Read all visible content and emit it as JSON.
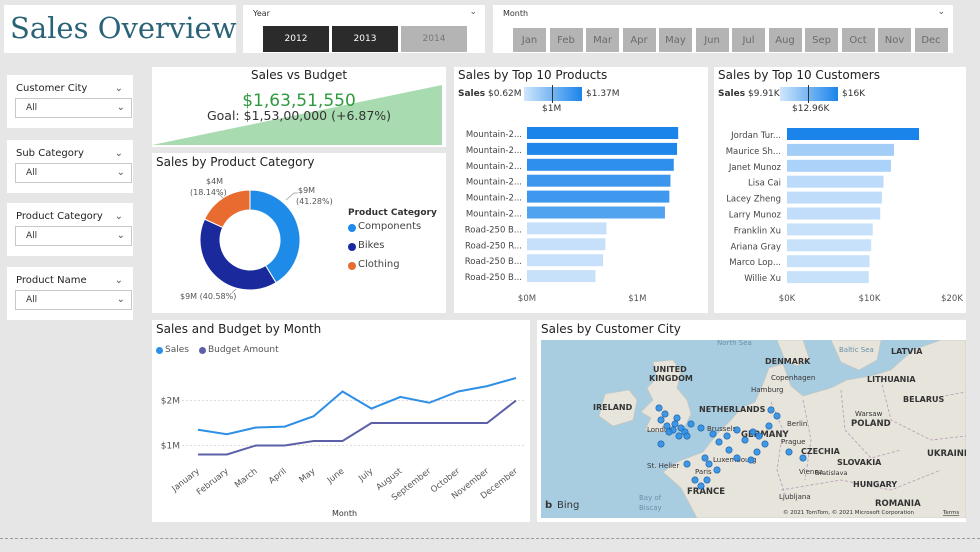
{
  "header": {
    "title": "Sales Overview"
  },
  "year_slicer": {
    "label": "Year",
    "options": [
      "2012",
      "2013",
      "2014"
    ],
    "selected": [
      "2012",
      "2013"
    ]
  },
  "month_slicer": {
    "label": "Month",
    "options": [
      "Jan",
      "Feb",
      "Mar",
      "Apr",
      "May",
      "Jun",
      "Jul",
      "Aug",
      "Sep",
      "Oct",
      "Nov",
      "Dec"
    ]
  },
  "filters": [
    {
      "label": "Customer City",
      "value": "All"
    },
    {
      "label": "Sub Category",
      "value": "All"
    },
    {
      "label": "Product Category",
      "value": "All"
    },
    {
      "label": "Product Name",
      "value": "All"
    }
  ],
  "kpi": {
    "title": "Sales vs Budget",
    "value": "$1,63,51,550",
    "goal": "Goal: $1,53,00,000 (+6.87%)"
  },
  "colors": {
    "kpi_value": "#2e9a3e",
    "kpi_fill": "#a8dcb0",
    "bar_dark": "#1a84ea",
    "bar_light": "#bcdcfa",
    "sales_line": "#2e8fe6",
    "budget_line": "#5d5fa8",
    "components": "#1f8be8",
    "bikes": "#1a2a9c",
    "clothing": "#e86c30"
  },
  "category_chart": {
    "title": "Sales by Product Category",
    "legend_title": "Product Category",
    "items": [
      {
        "name": "Components",
        "share": 41.28,
        "label1": "$9M",
        "label2": "(41.28%)"
      },
      {
        "name": "Bikes",
        "share": 40.58,
        "label1": "$9M (40.58%)",
        "label2": ""
      },
      {
        "name": "Clothing",
        "share": 18.14,
        "label1": "$4M",
        "label2": "(18.14%)"
      }
    ]
  },
  "top_products": {
    "title": "Sales by Top 10 Products",
    "legend": {
      "label": "Sales",
      "min": "$0.62M",
      "max": "$1.37M",
      "mid": "$1M"
    },
    "axis_ticks": [
      "$0M",
      "$1M"
    ],
    "categories": [
      "Mountain-2...",
      "Mountain-2...",
      "Mountain-2...",
      "Mountain-2...",
      "Mountain-2...",
      "Mountain-2...",
      "Road-250 B...",
      "Road-250 R...",
      "Road-250 B...",
      "Road-250 B..."
    ],
    "values": [
      1.37,
      1.36,
      1.33,
      1.3,
      1.29,
      1.25,
      0.72,
      0.71,
      0.69,
      0.62
    ],
    "xlim": [
      0,
      1.45
    ]
  },
  "top_customers": {
    "title": "Sales by Top 10 Customers",
    "legend": {
      "label": "Sales",
      "min": "$9.91K",
      "max": "$16K",
      "mid": "$12.96K"
    },
    "axis_ticks": [
      "$0K",
      "$10K",
      "$20K"
    ],
    "categories": [
      "Jordan Tur...",
      "Maurice Sh...",
      "Janet Munoz",
      "Lisa Cai",
      "Lacey Zheng",
      "Larry Munoz",
      "Franklin Xu",
      "Ariana Gray",
      "Marco Lop...",
      "Willie Xu"
    ],
    "values": [
      16.0,
      12.96,
      12.6,
      11.7,
      11.5,
      11.3,
      10.4,
      10.2,
      10.0,
      9.91
    ],
    "xlim": [
      0,
      20
    ]
  },
  "chart_data": {
    "type": "line",
    "title": "Sales and Budget by Month",
    "xlabel": "Month",
    "ylabel": "",
    "categories": [
      "January",
      "February",
      "March",
      "April",
      "May",
      "June",
      "July",
      "August",
      "September",
      "October",
      "November",
      "December"
    ],
    "series": [
      {
        "name": "Sales",
        "values": [
          1.35,
          1.25,
          1.4,
          1.42,
          1.65,
          2.2,
          1.82,
          2.08,
          1.95,
          2.2,
          2.32,
          2.5
        ]
      },
      {
        "name": "Budget Amount",
        "values": [
          0.8,
          0.8,
          1.0,
          1.0,
          1.1,
          1.1,
          1.5,
          1.5,
          1.5,
          1.5,
          1.5,
          2.0
        ]
      }
    ],
    "y_ticks": [
      {
        "v": 1,
        "label": "$1M"
      },
      {
        "v": 2,
        "label": "$2M"
      }
    ],
    "ylim": [
      0.5,
      2.9
    ],
    "legend": "top-left"
  },
  "map": {
    "title": "Sales by Customer City",
    "bing": "Bing",
    "copyright": "© 2021 TomTom, © 2021 Microsoft Corporation",
    "terms": "Terms",
    "labels": [
      "North Sea",
      "Baltic Sea",
      "DENMARK",
      "UNITED",
      "KINGDOM",
      "IRELAND",
      "NETHERLANDS",
      "LATVIA",
      "LITHUANIA",
      "BELARUS",
      "POLAND",
      "GERMANY",
      "CZECHIA",
      "SLOVAKIA",
      "HUNGARY",
      "ROMANIA",
      "FRANCE",
      "UKRAINE",
      "Copenhagen",
      "Hamburg",
      "Berlin",
      "London",
      "Brussels",
      "Prague",
      "Vienna",
      "Paris",
      "Luxembourg",
      "Bratislava",
      "Ljubljana",
      "Warsaw",
      "St. Helier",
      "Bay of",
      "Biscay"
    ]
  }
}
